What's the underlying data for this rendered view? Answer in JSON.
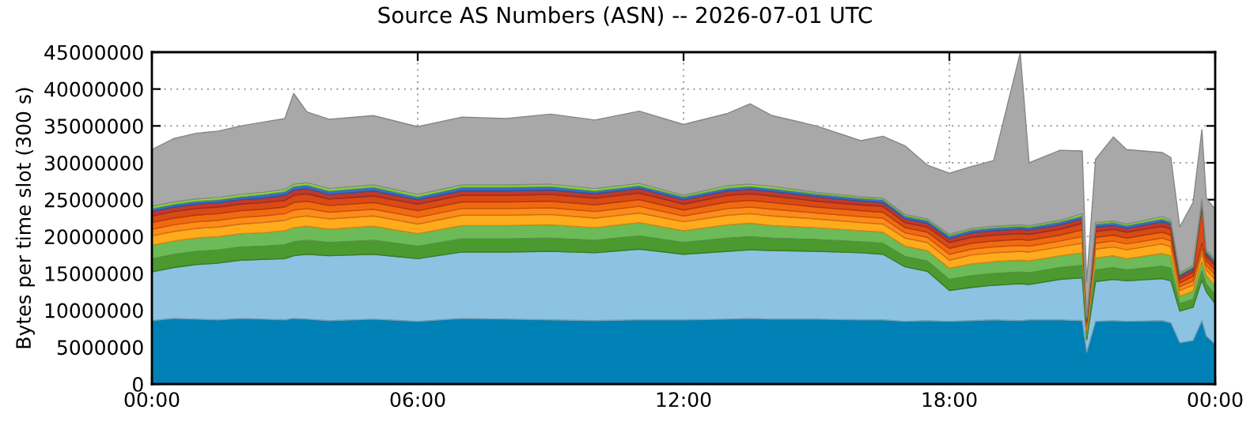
{
  "chart_data": {
    "type": "area",
    "stacked": true,
    "title": "Source AS Numbers (ASN) -- 2026-07-01 UTC",
    "ylabel": "Bytes per time slot (300 s)",
    "x": [
      0,
      0.5,
      1,
      1.5,
      2,
      2.5,
      3,
      3.2,
      3.5,
      4,
      5,
      6,
      7,
      8,
      9,
      10,
      11,
      12,
      13,
      13.5,
      14,
      15,
      16,
      16.5,
      17,
      17.5,
      18,
      18.5,
      19,
      19.6,
      19.8,
      20.5,
      21,
      21.1,
      21.3,
      21.7,
      22,
      22.8,
      23,
      23.2,
      23.5,
      23.7,
      23.8,
      24
    ],
    "xlim": [
      0,
      24
    ],
    "xticks": [
      {
        "value": 0,
        "label": "00:00"
      },
      {
        "value": 6,
        "label": "06:00"
      },
      {
        "value": 12,
        "label": "12:00"
      },
      {
        "value": 18,
        "label": "18:00"
      },
      {
        "value": 24,
        "label": "00:00"
      }
    ],
    "ylim": [
      0,
      45000000
    ],
    "yticks": [
      0,
      5000000,
      10000000,
      15000000,
      20000000,
      25000000,
      30000000,
      35000000,
      40000000,
      45000000
    ],
    "grid": true,
    "series": [
      {
        "color": "#0081b5",
        "values": [
          8600000.0,
          8900000.0,
          8800000.0,
          8700000.0,
          8900000.0,
          8800000.0,
          8700000.0,
          8900000.0,
          8800000.0,
          8600000.0,
          8800000.0,
          8500000.0,
          8900000.0,
          8800000.0,
          8700000.0,
          8600000.0,
          8700000.0,
          8700000.0,
          8800000.0,
          8900000.0,
          8800000.0,
          8800000.0,
          8700000.0,
          8700000.0,
          8500000.0,
          8600000.0,
          8500000.0,
          8600000.0,
          8700000.0,
          8600000.0,
          8700000.0,
          8700000.0,
          8600000.0,
          4300000.0,
          8500000.0,
          8600000.0,
          8500000.0,
          8600000.0,
          8300000.0,
          5600000.0,
          5900000.0,
          8600000.0,
          6500000.0,
          5400000.0
        ]
      },
      {
        "color": "#8cc3e2",
        "values": [
          6600000.0,
          6900000.0,
          7400000.0,
          7700000.0,
          7900000.0,
          8100000.0,
          8300000.0,
          8500000.0,
          8800000.0,
          8800000.0,
          8800000.0,
          8500000.0,
          9000000.0,
          9100000.0,
          9300000.0,
          9200000.0,
          9600000.0,
          8900000.0,
          9200000.0,
          9300000.0,
          9300000.0,
          9200000.0,
          9100000.0,
          8900000.0,
          7400000.0,
          6700000.0,
          4200000.0,
          4500000.0,
          4700000.0,
          5000000.0,
          4800000.0,
          5500000.0,
          5800000.0,
          1700000.0,
          5400000.0,
          5600000.0,
          5500000.0,
          5700000.0,
          5700000.0,
          4300000.0,
          4500000.0,
          5500000.0,
          6000000.0,
          5500000.0
        ]
      },
      {
        "color": "#4b9a2f",
        "values": [
          1800000.0,
          1800000.0,
          1800000.0,
          1800000.0,
          1800000.0,
          1800000.0,
          1900000.0,
          1900000.0,
          1900000.0,
          1800000.0,
          1900000.0,
          1700000.0,
          1800000.0,
          1800000.0,
          1800000.0,
          1700000.0,
          1800000.0,
          1600000.0,
          1800000.0,
          1800000.0,
          1700000.0,
          1600000.0,
          1500000.0,
          1500000.0,
          1400000.0,
          1400000.0,
          1500000.0,
          1600000.0,
          1600000.0,
          1600000.0,
          1600000.0,
          1600000.0,
          1700000.0,
          600000.0,
          1600000.0,
          1600000.0,
          1500000.0,
          1700000.0,
          1700000.0,
          1000000.0,
          1100000.0,
          1300000.0,
          1100000.0,
          1200000.0
        ]
      },
      {
        "color": "#6cbb58",
        "values": [
          1800000.0,
          1800000.0,
          1800000.0,
          1800000.0,
          1800000.0,
          1800000.0,
          1900000.0,
          1900000.0,
          1900000.0,
          1800000.0,
          1900000.0,
          1700000.0,
          1800000.0,
          1800000.0,
          1800000.0,
          1700000.0,
          1800000.0,
          1600000.0,
          1800000.0,
          1800000.0,
          1700000.0,
          1600000.0,
          1500000.0,
          1500000.0,
          1400000.0,
          1400000.0,
          1500000.0,
          1600000.0,
          1600000.0,
          1600000.0,
          1600000.0,
          1600000.0,
          1700000.0,
          600000.0,
          1600000.0,
          1600000.0,
          1500000.0,
          1700000.0,
          1700000.0,
          1000000.0,
          1100000.0,
          1300000.0,
          1100000.0,
          1200000.0
        ]
      },
      {
        "color": "#ffab1c",
        "values": [
          1300000.0,
          1300000.0,
          1300000.0,
          1300000.0,
          1300000.0,
          1400000.0,
          1400000.0,
          1400000.0,
          1400000.0,
          1400000.0,
          1400000.0,
          1300000.0,
          1400000.0,
          1400000.0,
          1400000.0,
          1300000.0,
          1300000.0,
          1200000.0,
          1300000.0,
          1300000.0,
          1300000.0,
          1200000.0,
          1100000.0,
          1100000.0,
          1100000.0,
          1100000.0,
          1100000.0,
          1200000.0,
          1200000.0,
          1200000.0,
          1200000.0,
          1200000.0,
          1300000.0,
          500000.0,
          1200000.0,
          1200000.0,
          1200000.0,
          1300000.0,
          1200000.0,
          800000.0,
          800000.0,
          1000000.0,
          800000.0,
          900000.0
        ]
      },
      {
        "color": "#ff8c1a",
        "values": [
          900000.0,
          900000.0,
          900000.0,
          900000.0,
          900000.0,
          900000.0,
          900000.0,
          1000000.0,
          1000000.0,
          900000.0,
          900000.0,
          900000.0,
          900000.0,
          900000.0,
          900000.0,
          900000.0,
          900000.0,
          800000.0,
          900000.0,
          900000.0,
          900000.0,
          800000.0,
          800000.0,
          800000.0,
          700000.0,
          700000.0,
          800000.0,
          800000.0,
          800000.0,
          800000.0,
          800000.0,
          800000.0,
          900000.0,
          300000.0,
          800000.0,
          800000.0,
          800000.0,
          800000.0,
          800000.0,
          500000.0,
          600000.0,
          700000.0,
          600000.0,
          600000.0
        ]
      },
      {
        "color": "#f26a10",
        "values": [
          900000.0,
          900000.0,
          900000.0,
          900000.0,
          900000.0,
          900000.0,
          900000.0,
          1000000.0,
          1000000.0,
          900000.0,
          900000.0,
          900000.0,
          900000.0,
          900000.0,
          900000.0,
          900000.0,
          900000.0,
          800000.0,
          900000.0,
          900000.0,
          900000.0,
          800000.0,
          800000.0,
          800000.0,
          700000.0,
          700000.0,
          800000.0,
          800000.0,
          800000.0,
          800000.0,
          800000.0,
          800000.0,
          900000.0,
          300000.0,
          800000.0,
          800000.0,
          800000.0,
          800000.0,
          800000.0,
          500000.0,
          600000.0,
          700000.0,
          600000.0,
          600000.0
        ]
      },
      {
        "color": "#d94a14",
        "values": [
          900000.0,
          900000.0,
          900000.0,
          900000.0,
          900000.0,
          900000.0,
          900000.0,
          1000000.0,
          1000000.0,
          900000.0,
          900000.0,
          900000.0,
          900000.0,
          900000.0,
          900000.0,
          900000.0,
          900000.0,
          800000.0,
          900000.0,
          900000.0,
          900000.0,
          800000.0,
          800000.0,
          800000.0,
          700000.0,
          700000.0,
          800000.0,
          800000.0,
          800000.0,
          800000.0,
          800000.0,
          800000.0,
          900000.0,
          300000.0,
          800000.0,
          800000.0,
          800000.0,
          800000.0,
          800000.0,
          500000.0,
          600000.0,
          5000000.0,
          600000.0,
          600000.0
        ]
      },
      {
        "color": "#c0392b",
        "values": [
          600000.0,
          600000.0,
          600000.0,
          600000.0,
          600000.0,
          600000.0,
          700000.0,
          700000.0,
          700000.0,
          600000.0,
          700000.0,
          600000.0,
          600000.0,
          600000.0,
          600000.0,
          600000.0,
          600000.0,
          600000.0,
          600000.0,
          600000.0,
          600000.0,
          600000.0,
          500000.0,
          500000.0,
          500000.0,
          500000.0,
          500000.0,
          600000.0,
          600000.0,
          600000.0,
          600000.0,
          600000.0,
          600000.0,
          200000.0,
          600000.0,
          500000.0,
          500000.0,
          600000.0,
          600000.0,
          400000.0,
          400000.0,
          500000.0,
          400000.0,
          400000.0
        ]
      },
      {
        "color": "#3a6cc4",
        "values": [
          400000.0,
          400000.0,
          400000.0,
          400000.0,
          400000.0,
          500000.0,
          500000.0,
          500000.0,
          500000.0,
          500000.0,
          500000.0,
          400000.0,
          500000.0,
          500000.0,
          500000.0,
          400000.0,
          400000.0,
          400000.0,
          400000.0,
          400000.0,
          400000.0,
          400000.0,
          400000.0,
          400000.0,
          400000.0,
          400000.0,
          400000.0,
          400000.0,
          400000.0,
          400000.0,
          400000.0,
          400000.0,
          400000.0,
          200000.0,
          400000.0,
          400000.0,
          400000.0,
          400000.0,
          400000.0,
          300000.0,
          300000.0,
          300000.0,
          300000.0,
          300000.0
        ]
      },
      {
        "color": "#8fe03c",
        "values": [
          300000.0,
          300000.0,
          300000.0,
          300000.0,
          300000.0,
          300000.0,
          300000.0,
          300000.0,
          300000.0,
          300000.0,
          300000.0,
          300000.0,
          300000.0,
          300000.0,
          300000.0,
          300000.0,
          300000.0,
          200000.0,
          300000.0,
          300000.0,
          300000.0,
          200000.0,
          200000.0,
          200000.0,
          200000.0,
          200000.0,
          200000.0,
          200000.0,
          200000.0,
          200000.0,
          200000.0,
          200000.0,
          300000.0,
          100000.0,
          200000.0,
          200000.0,
          200000.0,
          300000.0,
          200000.0,
          200000.0,
          200000.0,
          200000.0,
          200000.0,
          200000.0
        ]
      },
      {
        "color": "#a8a8a8",
        "values": [
          7700000.0,
          8600000.0,
          8900000.0,
          9000000.0,
          9300000.0,
          9500000.0,
          9600000.0,
          12300000.0,
          9600000.0,
          9400000.0,
          9400000.0,
          9200000.0,
          9200000.0,
          9000000.0,
          9500000.0,
          9300000.0,
          9800000.0,
          9600000.0,
          9800000.0,
          10900000.0,
          9600000.0,
          9000000.0,
          7600000.0,
          8400000.0,
          9300000.0,
          7300000.0,
          8300000.0,
          8400000.0,
          8900000.0,
          23300000.0,
          8500000.0,
          9500000.0,
          8500000.0,
          4800000.0,
          8600000.0,
          11400000.0,
          10100000.0,
          8700000.0,
          8500000.0,
          6200000.0,
          8500000.0,
          9400000.0,
          7000000.0,
          6800000.0
        ]
      }
    ]
  }
}
